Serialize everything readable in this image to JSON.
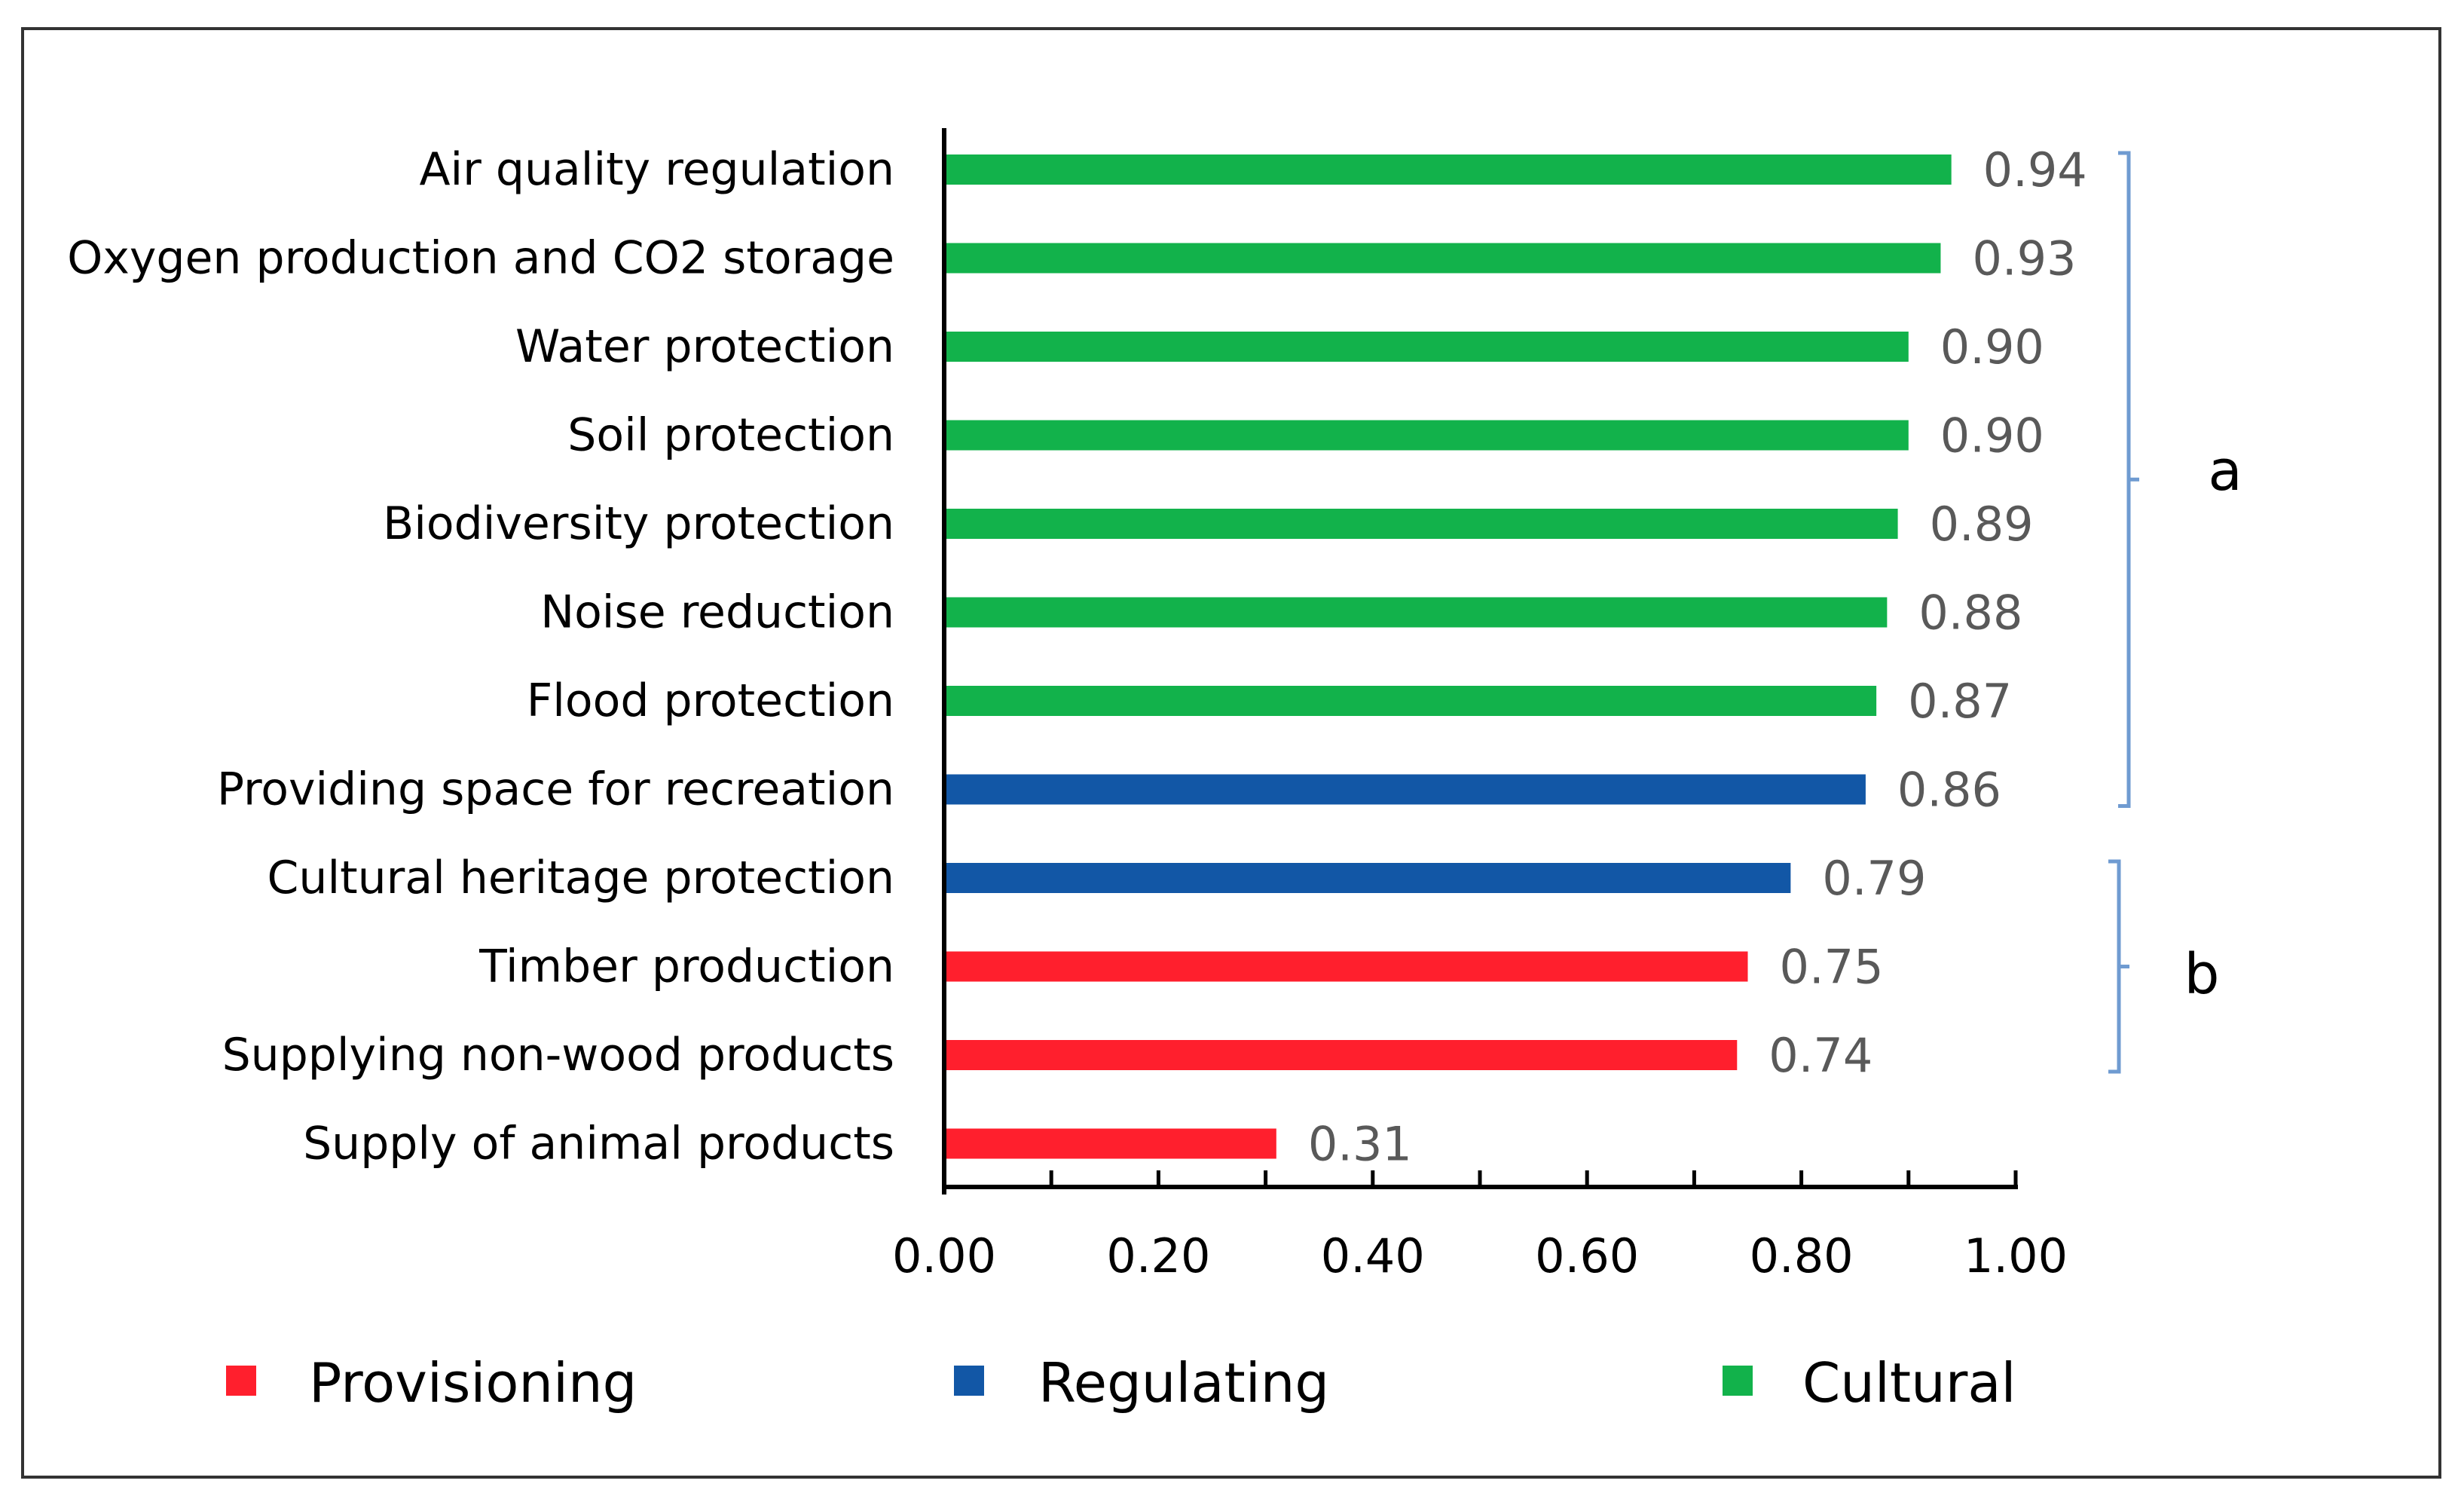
{
  "chart_data": {
    "type": "bar",
    "orientation": "horizontal",
    "categories": [
      "Air quality regulation",
      "Oxygen production and CO2 storage",
      "Water protection",
      "Soil protection",
      "Biodiversity protection",
      "Noise reduction",
      "Flood protection",
      "Providing space for recreation",
      "Cultural heritage protection",
      "Timber production",
      "Supplying non-wood products",
      "Supply of animal products"
    ],
    "values": [
      0.94,
      0.93,
      0.9,
      0.9,
      0.89,
      0.88,
      0.87,
      0.86,
      0.79,
      0.75,
      0.74,
      0.31
    ],
    "value_labels": [
      "0.94",
      "0.93",
      "0.90",
      "0.90",
      "0.89",
      "0.88",
      "0.87",
      "0.86",
      "0.79",
      "0.75",
      "0.74",
      "0.31"
    ],
    "series_of_bar": [
      "Cultural",
      "Cultural",
      "Cultural",
      "Cultural",
      "Cultural",
      "Cultural",
      "Cultural",
      "Regulating",
      "Regulating",
      "Provisioning",
      "Provisioning",
      "Provisioning"
    ],
    "legend": [
      {
        "name": "Provisioning",
        "color": "#ff1f2d"
      },
      {
        "name": "Regulating",
        "color": "#1257a6"
      },
      {
        "name": "Cultural",
        "color": "#12b24b"
      }
    ],
    "groups": [
      {
        "label": "a",
        "from_category": 0,
        "to_category": 7
      },
      {
        "label": "b",
        "from_category": 8,
        "to_category": 10
      }
    ],
    "xlim": [
      0.0,
      1.0
    ],
    "xticks": [
      "0.00",
      "0.20",
      "0.40",
      "0.60",
      "0.80",
      "1.00"
    ],
    "title": "",
    "xlabel": "",
    "ylabel": "",
    "grid": false,
    "legend_position": "bottom",
    "bracket_color": "#6f9bd1"
  }
}
